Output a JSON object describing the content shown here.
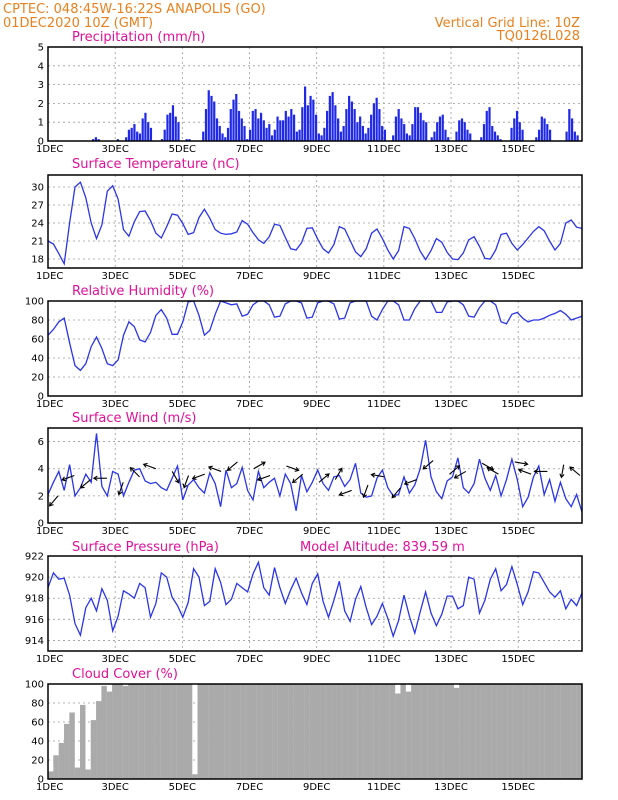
{
  "header": {
    "line1": "CPTEC:  048:45W-16:22S  ANAPOLIS (GO)",
    "line2": "01DEC2020 10Z (GMT)",
    "grid_note": "Vertical Grid Line: 10Z",
    "code": "TQ0126L028"
  },
  "colors": {
    "header": "#e8801e",
    "title": "#e0109a",
    "line": "#2a35e8",
    "bar": "#1e28e6",
    "cloud": "#aaaaaa",
    "arrow": "#000000"
  },
  "chart_data": [
    {
      "type": "bar",
      "title": "Precipitation (mm/h)",
      "ylim": [
        0,
        5
      ],
      "yticks": [
        0,
        1,
        2,
        3,
        4,
        5
      ],
      "x_ticks": [
        "1DEC",
        "3DEC",
        "5DEC",
        "7DEC",
        "9DEC",
        "11DEC",
        "13DEC",
        "15DEC"
      ],
      "x_start_label": "1DEC",
      "time_step_hours": 3,
      "values": [
        0,
        0,
        0,
        0,
        0,
        0,
        0,
        0,
        0,
        0,
        0,
        0,
        0,
        0,
        0,
        0,
        0.1,
        0.2,
        0.1,
        0,
        0,
        0,
        0,
        0,
        0,
        0.1,
        0,
        0,
        0.2,
        0.6,
        0.7,
        0.9,
        0.5,
        0.4,
        1.2,
        1.5,
        1.0,
        0.7,
        0,
        0,
        0,
        0.1,
        0.6,
        1.4,
        1.5,
        1.9,
        1.3,
        1.0,
        0,
        0,
        0.1,
        0.1,
        0,
        0,
        0,
        0,
        0.5,
        1.7,
        2.7,
        2.4,
        2.1,
        1.2,
        0.8,
        0.4,
        0.2,
        0.7,
        1.7,
        2.2,
        2.5,
        1.6,
        1.2,
        0.8,
        0.1,
        0.6,
        1.6,
        1.7,
        1.2,
        1.5,
        1.1,
        0.7,
        0.9,
        0.3,
        0.6,
        1.3,
        1.1,
        1.1,
        1.6,
        1.3,
        1.7,
        1.4,
        0.5,
        0.6,
        1.8,
        2.9,
        1.9,
        2.4,
        2.2,
        1.4,
        0.4,
        0.3,
        0.7,
        1.6,
        2.4,
        2.6,
        1.9,
        1.2,
        0.5,
        0.8,
        1.7,
        2.4,
        2.1,
        1.7,
        1.0,
        1.3,
        0.8,
        0.4,
        0.7,
        1.4,
        2.0,
        2.3,
        1.7,
        0.8,
        0.6,
        0,
        0,
        0.3,
        1.3,
        1.7,
        1.2,
        0.9,
        0.4,
        0.3,
        0.9,
        1.8,
        1.8,
        1.5,
        1.1,
        1.0,
        0,
        0.2,
        0.5,
        1.0,
        1.3,
        1.4,
        0.6,
        0.2,
        0,
        0,
        0.5,
        1.1,
        1.2,
        1.0,
        0.6,
        0.4,
        0,
        0,
        0,
        0.2,
        0.9,
        1.6,
        1.8,
        0.8,
        0.5,
        0.3,
        0.1,
        0,
        0,
        0,
        0.7,
        1.2,
        1.6,
        1.0,
        0.6,
        0,
        0,
        0,
        0,
        0.2,
        0.6,
        1.3,
        1.2,
        0.9,
        0.6,
        0,
        0,
        0,
        0,
        0,
        0.5,
        1.7,
        1.2,
        0.5,
        0.3,
        0
      ]
    },
    {
      "type": "line",
      "title": "Surface Temperature (nC)",
      "ylim": [
        16.5,
        32
      ],
      "yticks": [
        18,
        21,
        24,
        27,
        30
      ],
      "x_ticks": [
        "1DEC",
        "3DEC",
        "5DEC",
        "7DEC",
        "9DEC",
        "11DEC",
        "13DEC",
        "15DEC"
      ],
      "values": [
        21.0,
        20.5,
        18.9,
        17.2,
        24.0,
        30.0,
        30.8,
        28.2,
        24.0,
        21.4,
        23.7,
        29.3,
        30.2,
        28.0,
        22.9,
        21.8,
        24.2,
        25.9,
        26.0,
        24.4,
        22.3,
        21.5,
        23.4,
        25.5,
        25.3,
        23.9,
        22.1,
        22.4,
        24.9,
        26.3,
        24.8,
        22.9,
        22.3,
        22.1,
        22.2,
        22.5,
        24.4,
        23.8,
        22.4,
        21.2,
        20.6,
        21.7,
        23.8,
        23.6,
        21.6,
        19.7,
        19.5,
        20.7,
        23.1,
        23.2,
        21.3,
        19.7,
        19.0,
        20.4,
        23.4,
        23.0,
        21.1,
        19.2,
        18.4,
        19.7,
        22.3,
        23.0,
        21.4,
        19.5,
        18.0,
        19.4,
        23.4,
        23.1,
        21.4,
        19.3,
        17.9,
        19.4,
        21.4,
        20.8,
        19.1,
        18.0,
        17.9,
        19.0,
        21.2,
        21.7,
        20.1,
        18.1,
        18.0,
        19.5,
        22.1,
        22.3,
        20.6,
        19.5,
        20.4,
        21.5,
        22.6,
        23.4,
        22.7,
        21.0,
        19.5,
        20.6,
        24.0,
        24.5,
        23.3,
        23.1
      ]
    },
    {
      "type": "line",
      "title": "Relative Humidity (%)",
      "ylim": [
        0,
        100
      ],
      "yticks": [
        0,
        20,
        40,
        60,
        80,
        100
      ],
      "x_ticks": [
        "1DEC",
        "3DEC",
        "5DEC",
        "7DEC",
        "9DEC",
        "11DEC",
        "13DEC",
        "15DEC"
      ],
      "values": [
        64,
        70,
        78,
        82,
        56,
        32,
        27,
        34,
        52,
        62,
        50,
        34,
        32,
        38,
        64,
        78,
        73,
        59,
        57,
        67,
        85,
        91,
        82,
        65,
        65,
        78,
        99,
        100,
        85,
        64,
        69,
        86,
        100,
        98,
        96,
        97,
        84,
        86,
        96,
        100,
        100,
        96,
        83,
        84,
        97,
        100,
        100,
        98,
        82,
        83,
        98,
        100,
        100,
        97,
        81,
        82,
        98,
        100,
        100,
        100,
        84,
        80,
        91,
        100,
        100,
        96,
        80,
        80,
        92,
        100,
        100,
        100,
        88,
        88,
        99,
        100,
        100,
        96,
        84,
        83,
        93,
        100,
        100,
        96,
        78,
        76,
        86,
        88,
        82,
        78,
        80,
        80,
        82,
        85,
        87,
        90,
        86,
        80,
        82,
        84
      ]
    },
    {
      "type": "line",
      "title": "Surface Wind (m/s)",
      "ylim": [
        0,
        7
      ],
      "yticks": [
        0,
        2,
        4,
        6
      ],
      "x_ticks": [
        "1DEC",
        "3DEC",
        "5DEC",
        "7DEC",
        "9DEC",
        "11DEC",
        "13DEC",
        "15DEC"
      ],
      "values": [
        2.1,
        3.0,
        3.8,
        2.4,
        4.3,
        2.0,
        2.6,
        3.6,
        3.0,
        6.6,
        2.7,
        2.0,
        3.8,
        3.6,
        2.0,
        3.0,
        3.9,
        4.0,
        3.1,
        2.9,
        3.0,
        2.6,
        2.4,
        3.3,
        4.2,
        1.7,
        2.8,
        3.2,
        2.6,
        2.2,
        3.7,
        2.9,
        1.2,
        3.9,
        2.6,
        2.9,
        4.1,
        2.4,
        1.7,
        3.8,
        2.6,
        3.0,
        3.3,
        2.0,
        3.6,
        2.9,
        0.9,
        3.5,
        2.3,
        3.0,
        3.9,
        2.9,
        2.4,
        3.4,
        3.5,
        2.7,
        3.2,
        4.4,
        2.2,
        1.9,
        2.0,
        3.3,
        3.9,
        2.6,
        2.0,
        2.1,
        3.4,
        2.2,
        2.8,
        4.0,
        6.1,
        3.4,
        2.3,
        1.8,
        3.1,
        3.4,
        4.8,
        2.6,
        2.2,
        2.9,
        4.7,
        3.3,
        2.4,
        3.5,
        2.0,
        3.2,
        4.7,
        3.2,
        1.2,
        1.9,
        3.4,
        4.2,
        2.1,
        3.2,
        1.6,
        3.0,
        1.8,
        1.2,
        2.1,
        0.8
      ]
    },
    {
      "type": "line",
      "title": "Surface Pressure (hPa)",
      "annotation": "Model Altitude: 839.59 m",
      "ylim": [
        913,
        922
      ],
      "yticks": [
        914,
        916,
        918,
        920,
        922
      ],
      "x_ticks": [
        "1DEC",
        "3DEC",
        "5DEC",
        "7DEC",
        "9DEC",
        "11DEC",
        "13DEC",
        "15DEC"
      ],
      "values": [
        919.0,
        920.4,
        919.8,
        919.9,
        918.3,
        915.6,
        914.5,
        917.1,
        918.0,
        916.8,
        918.9,
        917.8,
        914.9,
        916.3,
        918.7,
        918.4,
        918.0,
        919.4,
        919.0,
        916.2,
        917.5,
        920.4,
        920.0,
        918.1,
        917.3,
        916.2,
        917.6,
        920.8,
        920.0,
        917.3,
        917.7,
        920.8,
        919.5,
        917.4,
        917.9,
        919.4,
        919.0,
        918.6,
        920.3,
        921.4,
        919.0,
        918.3,
        920.9,
        919.0,
        917.5,
        918.8,
        919.9,
        918.5,
        917.4,
        919.4,
        920.3,
        917.7,
        916.2,
        917.8,
        919.6,
        916.8,
        915.8,
        917.9,
        919.1,
        917.1,
        915.5,
        916.3,
        917.5,
        916.1,
        914.4,
        915.9,
        918.3,
        916.3,
        914.7,
        916.7,
        918.6,
        916.6,
        915.4,
        916.5,
        918.2,
        918.2,
        917.0,
        917.3,
        920.0,
        919.8,
        916.6,
        917.8,
        919.8,
        920.8,
        918.7,
        919.3,
        921.0,
        919.3,
        917.4,
        918.6,
        920.5,
        920.4,
        919.5,
        918.6,
        918.1,
        918.7,
        917.0,
        917.9,
        917.3,
        918.5
      ]
    },
    {
      "type": "bar",
      "title": "Cloud Cover (%)",
      "ylim": [
        0,
        100
      ],
      "yticks": [
        0,
        20,
        40,
        60,
        80,
        100
      ],
      "x_ticks": [
        "1DEC",
        "3DEC",
        "5DEC",
        "7DEC",
        "9DEC",
        "11DEC",
        "13DEC",
        "15DEC"
      ],
      "values": [
        8,
        25,
        38,
        58,
        70,
        12,
        78,
        10,
        62,
        82,
        98,
        92,
        100,
        100,
        98,
        100,
        100,
        100,
        100,
        100,
        100,
        100,
        100,
        100,
        100,
        100,
        100,
        5,
        100,
        100,
        100,
        100,
        100,
        100,
        100,
        100,
        100,
        100,
        100,
        100,
        100,
        100,
        100,
        100,
        100,
        100,
        100,
        100,
        100,
        100,
        100,
        100,
        100,
        100,
        100,
        100,
        100,
        100,
        100,
        100,
        100,
        100,
        100,
        100,
        100,
        90,
        100,
        92,
        100,
        100,
        100,
        100,
        100,
        100,
        100,
        100,
        96,
        100,
        100,
        100,
        100,
        100,
        100,
        100,
        100,
        100,
        100,
        100,
        100,
        100,
        100,
        100,
        100,
        100,
        100,
        100,
        100,
        100,
        100,
        100
      ]
    }
  ],
  "wind_arrows": [
    {
      "value": 2.0,
      "dir_deg": 230
    },
    {
      "value": 3.5,
      "dir_deg": 200
    },
    {
      "value": 3.2,
      "dir_deg": 220
    },
    {
      "value": 3.3,
      "dir_deg": 180
    },
    {
      "value": 3.0,
      "dir_deg": 250
    },
    {
      "value": 3.4,
      "dir_deg": 135
    },
    {
      "value": 4.0,
      "dir_deg": 160
    },
    {
      "value": 3.8,
      "dir_deg": 300
    },
    {
      "value": 3.5,
      "dir_deg": 250
    },
    {
      "value": 3.6,
      "dir_deg": 200
    },
    {
      "value": 3.8,
      "dir_deg": 160
    },
    {
      "value": 4.5,
      "dir_deg": 220
    },
    {
      "value": 4.0,
      "dir_deg": 30
    },
    {
      "value": 3.5,
      "dir_deg": 200
    },
    {
      "value": 4.2,
      "dir_deg": 340
    },
    {
      "value": 3.6,
      "dir_deg": 220
    },
    {
      "value": 3.0,
      "dir_deg": 40
    },
    {
      "value": 3.2,
      "dir_deg": 60
    },
    {
      "value": 2.4,
      "dir_deg": 200
    },
    {
      "value": 2.8,
      "dir_deg": 250
    },
    {
      "value": 3.4,
      "dir_deg": 170
    },
    {
      "value": 2.6,
      "dir_deg": 230
    },
    {
      "value": 3.2,
      "dir_deg": 200
    },
    {
      "value": 4.6,
      "dir_deg": 220
    },
    {
      "value": 3.6,
      "dir_deg": 40
    },
    {
      "value": 3.8,
      "dir_deg": 210
    },
    {
      "value": 4.4,
      "dir_deg": 330
    },
    {
      "value": 3.6,
      "dir_deg": 150
    },
    {
      "value": 4.5,
      "dir_deg": 350
    },
    {
      "value": 3.6,
      "dir_deg": 160
    },
    {
      "value": 3.8,
      "dir_deg": 180
    },
    {
      "value": 4.3,
      "dir_deg": 260
    },
    {
      "value": 3.5,
      "dir_deg": 140
    }
  ]
}
